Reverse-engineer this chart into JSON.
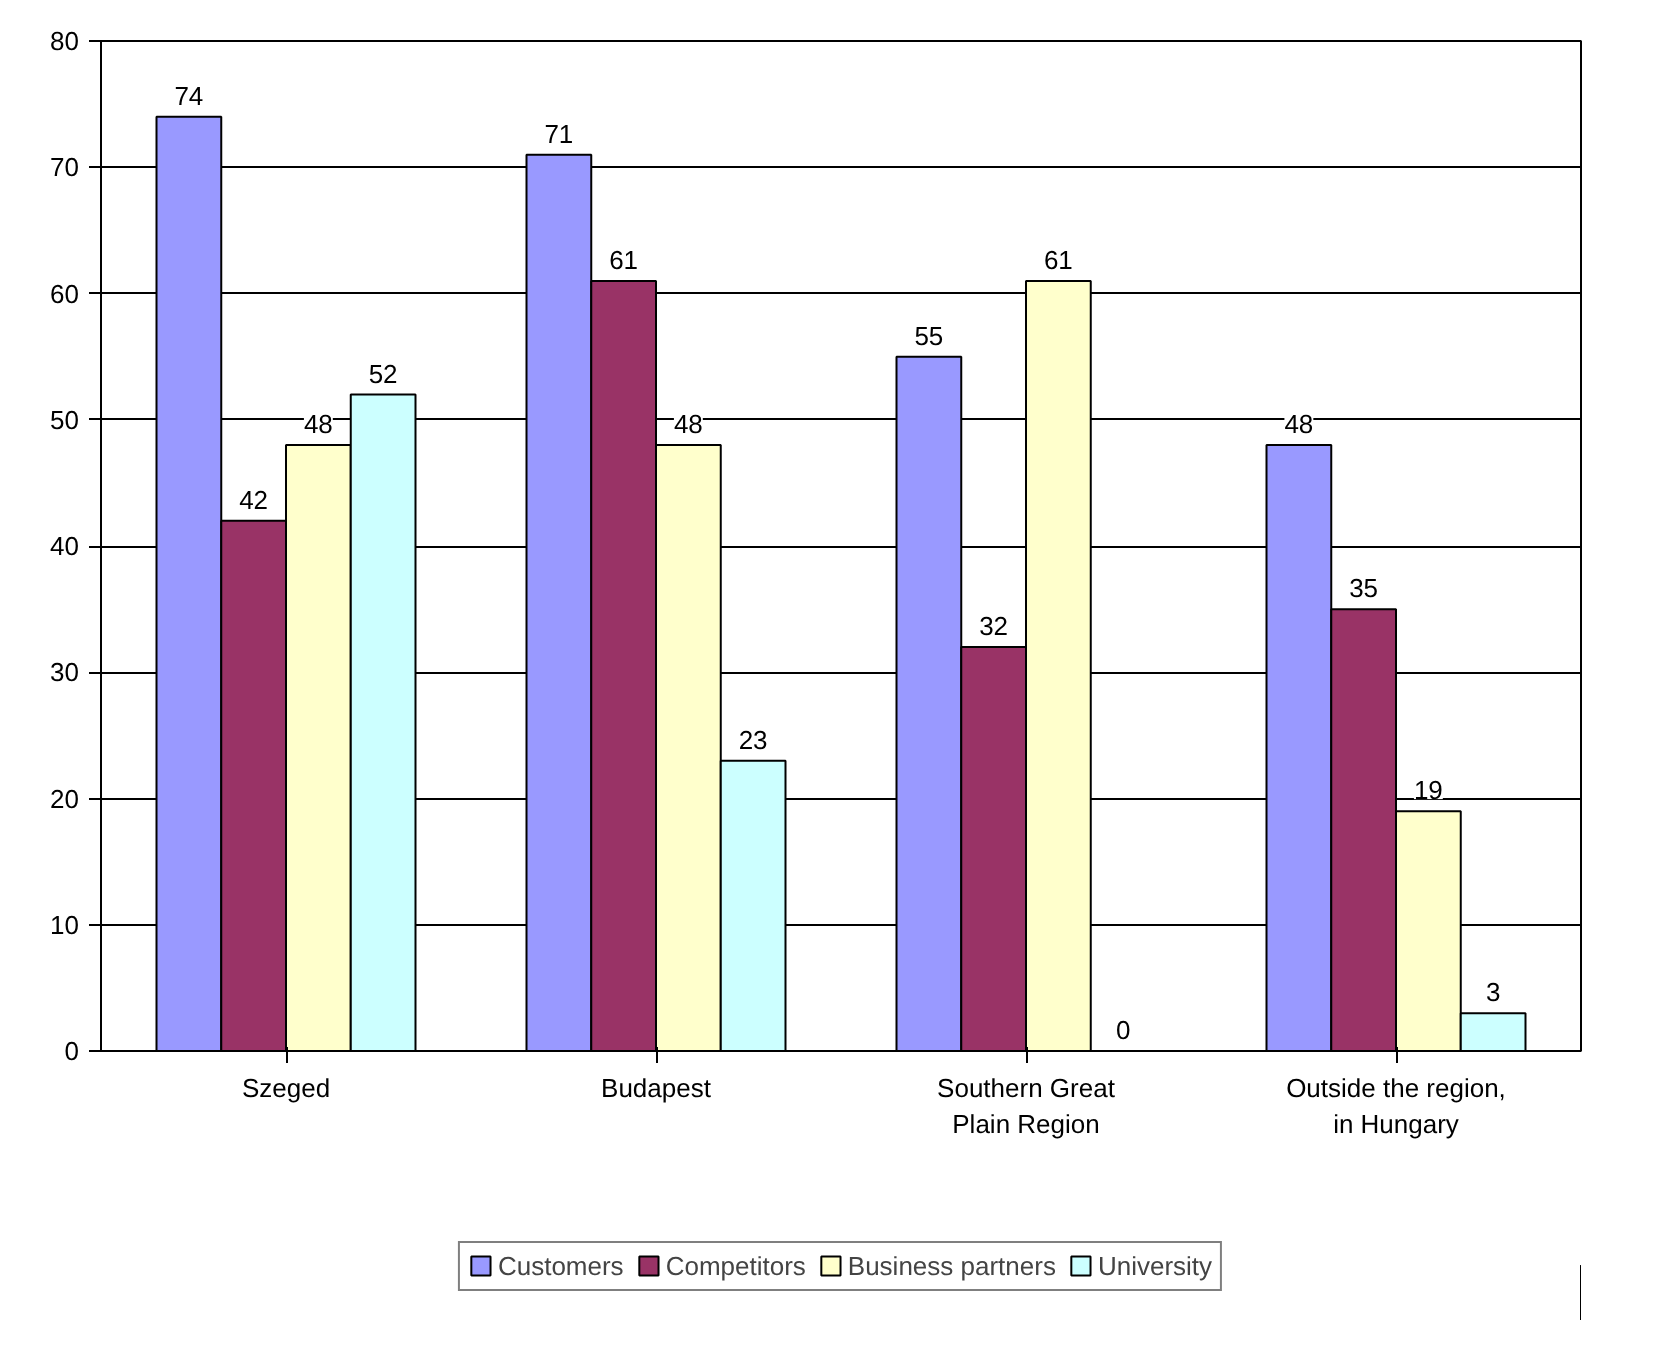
{
  "chart_data": {
    "type": "bar",
    "categories": [
      "Szeged",
      "Budapest",
      "Southern Great\nPlain Region",
      "Outside the region,\nin Hungary"
    ],
    "series": [
      {
        "name": "Customers",
        "color": "#9999ff",
        "values": [
          74,
          71,
          55,
          48
        ]
      },
      {
        "name": "Competitors",
        "color": "#993366",
        "values": [
          42,
          61,
          32,
          35
        ]
      },
      {
        "name": "Business partners",
        "color": "#ffffcc",
        "values": [
          48,
          48,
          61,
          19
        ]
      },
      {
        "name": "University",
        "color": "#ccffff",
        "values": [
          52,
          23,
          0,
          3
        ]
      }
    ],
    "ylim": [
      0,
      80
    ],
    "yticks": [
      0,
      10,
      20,
      30,
      40,
      50,
      60,
      70,
      80
    ],
    "grid": "y",
    "legend": "bottom",
    "data_labels": true
  }
}
